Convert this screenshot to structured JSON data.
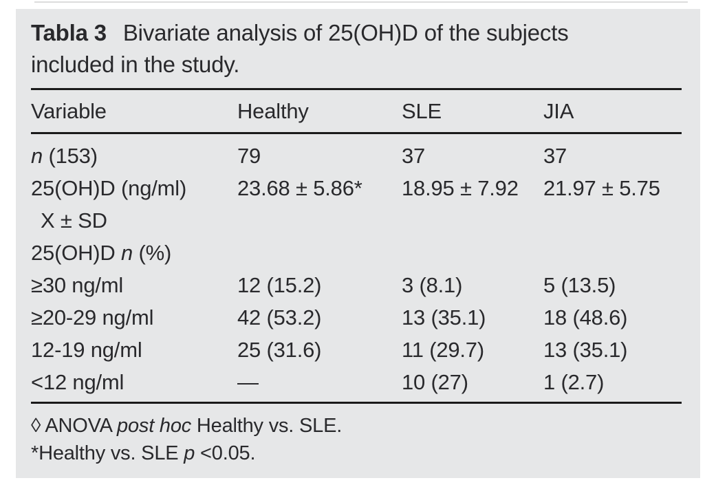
{
  "colors": {
    "page_bg": "#ffffff",
    "panel_bg": "#e6e7e8",
    "text": "#29292c",
    "rule": "#1a1a1a"
  },
  "title": {
    "label": "Tabla 3",
    "line1": "Bivariate analysis of 25(OH)D of the subjects",
    "line2": "included in the study."
  },
  "table": {
    "headers": [
      "Variable",
      "Healthy",
      "SLE",
      "JIA"
    ],
    "rows": [
      {
        "label": [
          {
            "t": "n",
            "italic": true
          },
          {
            "t": " (153)"
          }
        ],
        "healthy": "79",
        "sle": "37",
        "jia": "37"
      },
      {
        "label": [
          {
            "t": "25(OH)D (ng/ml)"
          }
        ],
        "healthy": "23.68 ± 5.86*",
        "sle": "18.95 ± 7.92",
        "jia": "21.97 ± 5.75"
      },
      {
        "label": [
          {
            "t": "X ± SD"
          }
        ],
        "indent": true,
        "healthy": "",
        "sle": "",
        "jia": ""
      },
      {
        "label": [
          {
            "t": "25(OH)D "
          },
          {
            "t": "n",
            "italic": true
          },
          {
            "t": " (%)"
          }
        ],
        "healthy": "",
        "sle": "",
        "jia": ""
      },
      {
        "label": [
          {
            "t": "≥30 ng/ml"
          }
        ],
        "healthy": "12 (15.2)",
        "sle": "3 (8.1)",
        "jia": "5 (13.5)"
      },
      {
        "label": [
          {
            "t": "≥20-29 ng/ml"
          }
        ],
        "healthy": "42 (53.2)",
        "sle": "13 (35.1)",
        "jia": "18 (48.6)"
      },
      {
        "label": [
          {
            "t": "12-19 ng/ml"
          }
        ],
        "healthy": "25 (31.6)",
        "sle": "11 (29.7)",
        "jia": "13 (35.1)"
      },
      {
        "label": [
          {
            "t": "<12 ng/ml"
          }
        ],
        "healthy": "—",
        "sle": "10 (27)",
        "jia": "1 (2.7)"
      }
    ]
  },
  "footnotes": [
    {
      "parts": [
        {
          "t": "◊ ANOVA "
        },
        {
          "t": "post hoc",
          "italic": true
        },
        {
          "t": " Healthy vs. SLE."
        }
      ]
    },
    {
      "parts": [
        {
          "t": "*Healthy vs. SLE "
        },
        {
          "t": "p",
          "italic": true
        },
        {
          "t": " <0.05."
        }
      ]
    }
  ]
}
